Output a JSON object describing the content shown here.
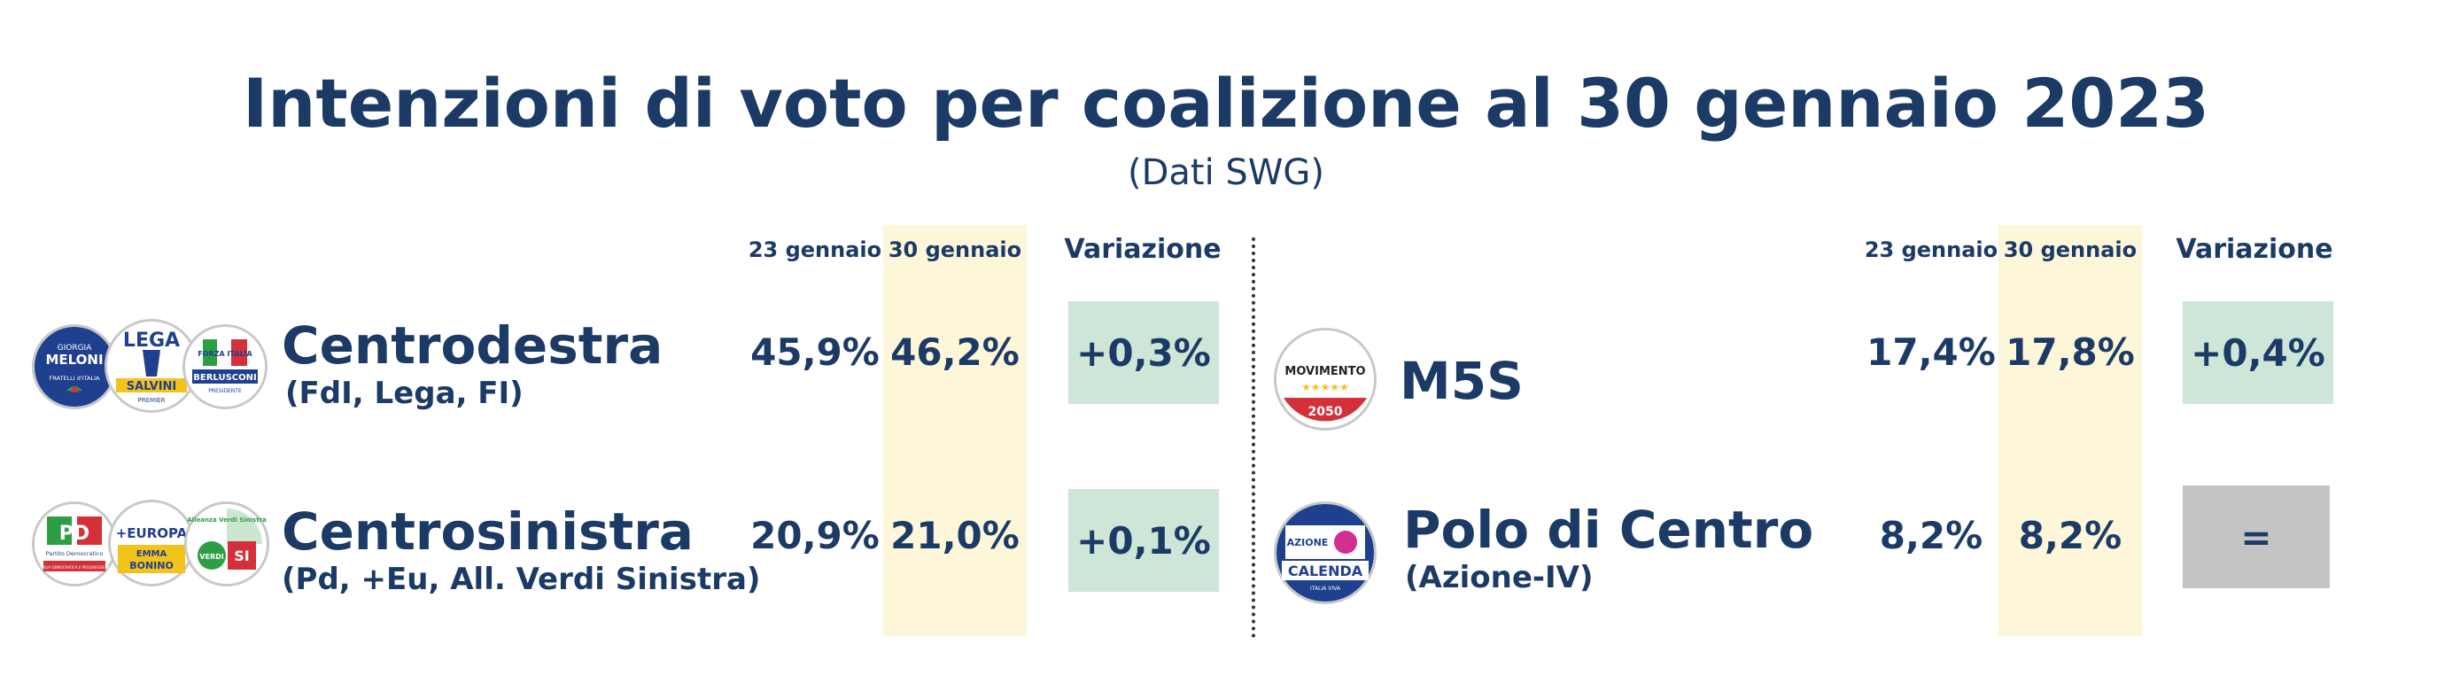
{
  "title": "Intenzioni di voto per coalizione al 30 gennaio 2023",
  "subtitle": "(Dati SWG)",
  "columns": {
    "prev": "23 gennaio",
    "curr": "30 gennaio",
    "change": "Variazione"
  },
  "left": [
    {
      "name": "Centrodestra",
      "detail": "(FdI, Lega, FI)",
      "prev": "45,9%",
      "curr": "46,2%",
      "change": "+0,3%",
      "change_status": "up",
      "logos": [
        {
          "icon": "fdi-logo-icon",
          "text": "MELONI",
          "text2": "FRATELLI d'ITALIA",
          "text3": "GIORGIA"
        },
        {
          "icon": "lega-logo-icon",
          "text": "LEGA",
          "text2": "SALVINI",
          "text3": "PREMIER"
        },
        {
          "icon": "forza-italia-logo-icon",
          "text": "FORZA ITALIA",
          "text2": "BERLUSCONI",
          "text3": "PRESIDENTE"
        }
      ]
    },
    {
      "name": "Centrosinistra",
      "detail": "(Pd, +Eu, All. Verdi Sinistra)",
      "prev": "20,9%",
      "curr": "21,0%",
      "change": "+0,1%",
      "change_status": "up",
      "logos": [
        {
          "icon": "pd-logo-icon",
          "text": "PD",
          "text2": "Partito Democratico",
          "text3": "ITALIA DEMOCRATICA E PROGRESSISTA"
        },
        {
          "icon": "piu-europa-logo-icon",
          "text": "+EUROPA",
          "text2": "EMMA",
          "text3": "BONINO"
        },
        {
          "icon": "verdi-sinistra-logo-icon",
          "text": "Alleanza Verdi Sinistra",
          "text2": "SI",
          "text3": "VERDI"
        }
      ]
    }
  ],
  "right": [
    {
      "name": "M5S",
      "detail": "",
      "prev": "17,4%",
      "curr": "17,8%",
      "change": "+0,4%",
      "change_status": "up",
      "logos": [
        {
          "icon": "m5s-logo-icon",
          "text": "MOVIMENTO",
          "text2": "2050",
          "text3": "★★★★★"
        }
      ]
    },
    {
      "name": "Polo di Centro",
      "detail": "(Azione-IV)",
      "prev": "8,2%",
      "curr": "8,2%",
      "change": "=",
      "change_status": "unchanged",
      "logos": [
        {
          "icon": "azione-iv-logo-icon",
          "text": "CALENDA",
          "text2": "AZIONE",
          "text3": "ITALIA VIVA"
        }
      ]
    }
  ],
  "colors": {
    "text": "#1b3a66",
    "highlight": "#fdf6d9",
    "up": "#cde6d7",
    "unchanged": "#c4c4c4"
  }
}
